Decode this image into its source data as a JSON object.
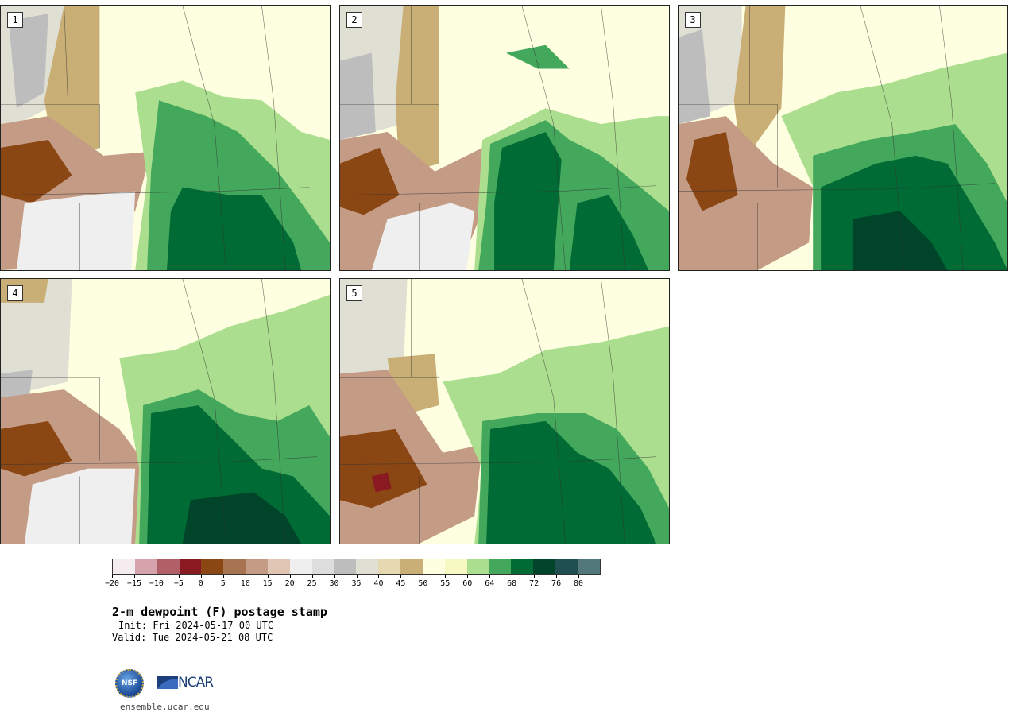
{
  "panels": [
    {
      "label": "1"
    },
    {
      "label": "2"
    },
    {
      "label": "3"
    },
    {
      "label": "4"
    },
    {
      "label": "5"
    }
  ],
  "colorbar": {
    "colors": [
      "#f4ecee",
      "#d6a3ad",
      "#b06066",
      "#8a1a22",
      "#8a4613",
      "#a87350",
      "#c49b85",
      "#e0c5b4",
      "#efefef",
      "#dddddd",
      "#bdbdbd",
      "#e0dfd3",
      "#e6d8b0",
      "#c9ae76",
      "#fefee0",
      "#f7f9c2",
      "#abdf8f",
      "#43a85b",
      "#006b35",
      "#00452a",
      "#204f52",
      "#52787a"
    ],
    "tick_labels": [
      "−20",
      "−15",
      "−10",
      "−5",
      "0",
      "5",
      "10",
      "15",
      "20",
      "25",
      "30",
      "35",
      "40",
      "45",
      "50",
      "55",
      "60",
      "64",
      "68",
      "72",
      "76",
      "80"
    ]
  },
  "title": "2-m dewpoint (F) postage stamp",
  "init": "Init: Fri 2024-05-17 00 UTC",
  "valid": "Valid: Tue 2024-05-21 08 UTC",
  "logos": {
    "nsf": "NSF",
    "ncar": "NCAR"
  },
  "site": "ensemble.ucar.edu"
}
